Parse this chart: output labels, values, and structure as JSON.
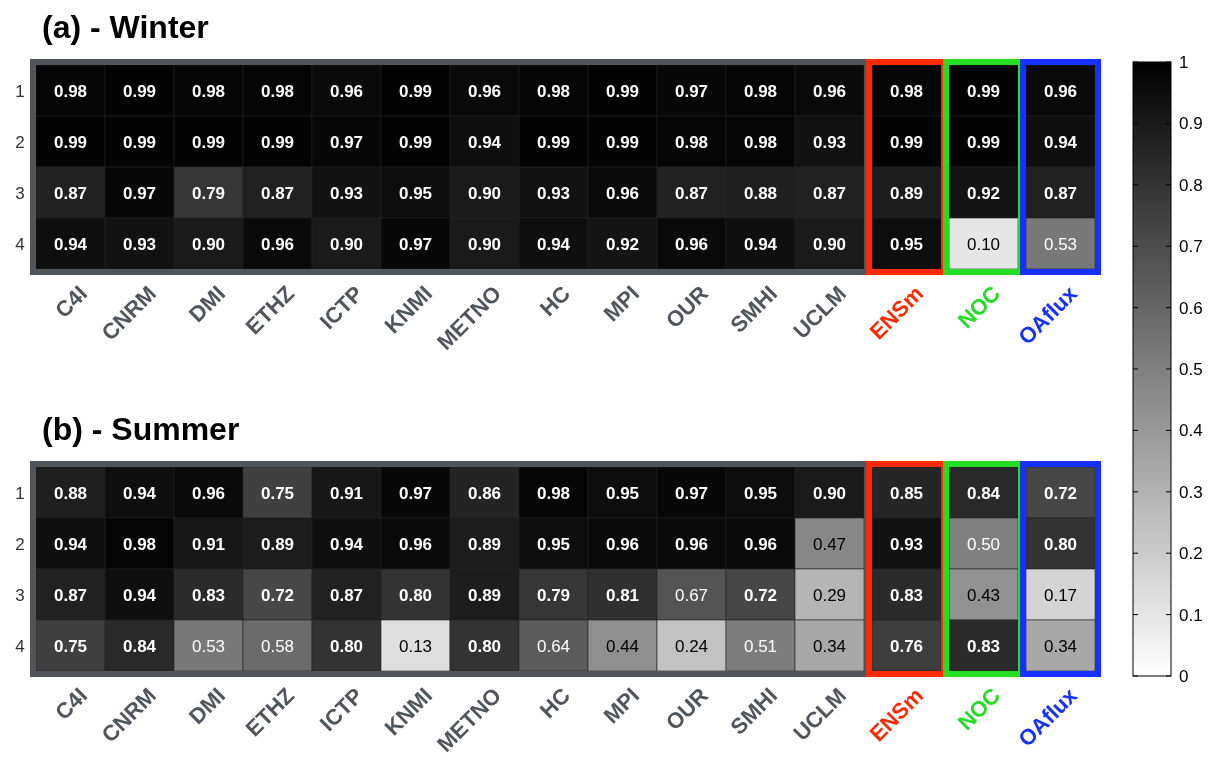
{
  "chart_data": [
    {
      "type": "heatmap",
      "title": "(a) - Winter",
      "categories": [
        "C4I",
        "CNRM",
        "DMI",
        "ETHZ",
        "ICTP",
        "KNMI",
        "METNO",
        "HC",
        "MPI",
        "OUR",
        "SMHI",
        "UCLM",
        "ENSm",
        "NOC",
        "OAflux"
      ],
      "y_categories": [
        "1",
        "2",
        "3",
        "4"
      ],
      "cells": [
        [
          0.98,
          0.99,
          0.98,
          0.98,
          0.96,
          0.99,
          0.96,
          0.98,
          0.99,
          0.97,
          0.98,
          0.96,
          0.98,
          0.99,
          0.96
        ],
        [
          0.99,
          0.99,
          0.99,
          0.99,
          0.97,
          0.99,
          0.94,
          0.99,
          0.99,
          0.98,
          0.98,
          0.93,
          0.99,
          0.99,
          0.94
        ],
        [
          0.87,
          0.97,
          0.79,
          0.87,
          0.93,
          0.95,
          0.9,
          0.93,
          0.96,
          0.87,
          0.88,
          0.87,
          0.89,
          0.92,
          0.87
        ],
        [
          0.94,
          0.93,
          0.9,
          0.96,
          0.9,
          0.97,
          0.9,
          0.94,
          0.92,
          0.96,
          0.94,
          0.9,
          0.95,
          0.1,
          0.53
        ]
      ],
      "cell_labels": [
        [
          "0.98",
          "0.99",
          "0.98",
          "0.98",
          "0.96",
          "0.99",
          "0.96",
          "0.98",
          "0.99",
          "0.97",
          "0.98",
          "0.96",
          "0.98",
          "0.99",
          "0.96"
        ],
        [
          "0.99",
          "0.99",
          "0.99",
          "0.99",
          "0.97",
          "0.99",
          "0.94",
          "0.99",
          "0.99",
          "0.98",
          "0.98",
          "0.93",
          "0.99",
          "0.99",
          "0.94"
        ],
        [
          "0.87",
          "0.97",
          "0.79",
          "0.87",
          "0.93",
          "0.95",
          "0.90",
          "0.93",
          "0.96",
          "0.87",
          "0.88",
          "0.87",
          "0.89",
          "0.92",
          "0.87"
        ],
        [
          "0.94",
          "0.93",
          "0.90",
          "0.96",
          "0.90",
          "0.97",
          "0.90",
          "0.94",
          "0.92",
          "0.96",
          "0.94",
          "0.90",
          "0.95",
          "0.10",
          "0.53"
        ]
      ],
      "clim": [
        0,
        1
      ],
      "cticks": [
        0,
        0.1,
        0.2,
        0.3,
        0.4,
        0.5,
        0.6,
        0.7,
        0.8,
        0.9,
        1
      ]
    },
    {
      "type": "heatmap",
      "title": "(b) - Summer",
      "categories": [
        "C4I",
        "CNRM",
        "DMI",
        "ETHZ",
        "ICTP",
        "KNMI",
        "METNO",
        "HC",
        "MPI",
        "OUR",
        "SMHI",
        "UCLM",
        "ENSm",
        "NOC",
        "OAflux"
      ],
      "y_categories": [
        "1",
        "2",
        "3",
        "4"
      ],
      "cells": [
        [
          0.88,
          0.94,
          0.96,
          0.75,
          0.91,
          0.97,
          0.86,
          0.98,
          0.95,
          0.97,
          0.95,
          0.9,
          0.85,
          0.84,
          0.72
        ],
        [
          0.94,
          0.98,
          0.91,
          0.89,
          0.94,
          0.96,
          0.89,
          0.95,
          0.96,
          0.96,
          0.96,
          0.47,
          0.93,
          0.5,
          0.8
        ],
        [
          0.87,
          0.94,
          0.83,
          0.72,
          0.87,
          0.8,
          0.89,
          0.79,
          0.81,
          0.67,
          0.72,
          0.29,
          0.83,
          0.43,
          0.17
        ],
        [
          0.75,
          0.84,
          0.53,
          0.58,
          0.8,
          0.13,
          0.8,
          0.64,
          0.44,
          0.24,
          0.51,
          0.34,
          0.76,
          0.83,
          0.34
        ]
      ],
      "cell_labels": [
        [
          "0.88",
          "0.94",
          "0.96",
          "0.75",
          "0.91",
          "0.97",
          "0.86",
          "0.98",
          "0.95",
          "0.97",
          "0.95",
          "0.90",
          "0.85",
          "0.84",
          "0.72"
        ],
        [
          "0.94",
          "0.98",
          "0.91",
          "0.89",
          "0.94",
          "0.96",
          "0.89",
          "0.95",
          "0.96",
          "0.96",
          "0.96",
          "0.47",
          "0.93",
          "0.50",
          "0.80"
        ],
        [
          "0.87",
          "0.94",
          "0.83",
          "0.72",
          "0.87",
          "0.80",
          "0.89",
          "0.79",
          "0.81",
          "0.67",
          "0.72",
          "0.29",
          "0.83",
          "0.43",
          "0.17"
        ],
        [
          "0.75",
          "0.84",
          "0.53",
          "0.58",
          "0.80",
          "0.13",
          "0.80",
          "0.64",
          "0.44",
          "0.24",
          "0.51",
          "0.34",
          "0.76",
          "0.83",
          "0.34"
        ]
      ]
    }
  ]
}
